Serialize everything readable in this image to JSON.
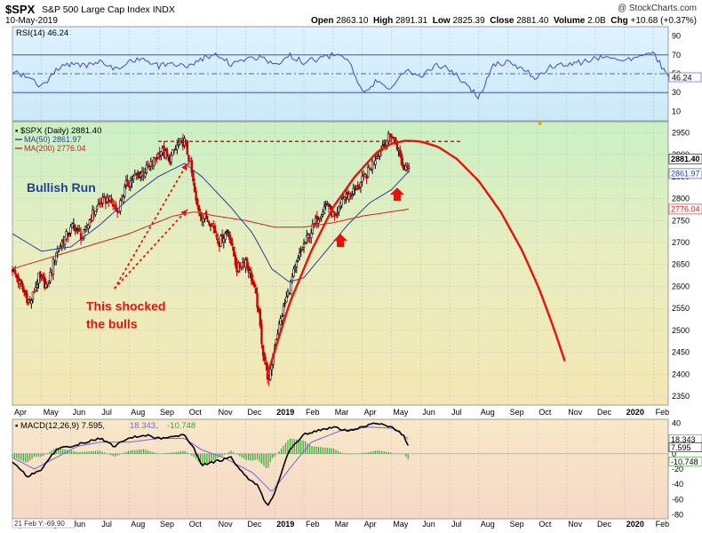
{
  "header": {
    "ticker": "$SPX",
    "name": "S&P 500 Large Cap Index",
    "exchange": "INDX",
    "date": "10-May-2019",
    "watermark": "@ StockCharts.com",
    "open_label": "Open",
    "open_value": "2863.10",
    "high_label": "High",
    "high_value": "2891.31",
    "low_label": "Low",
    "low_value": "2825.39",
    "close_label": "Close",
    "close_value": "2881.40",
    "volume_label": "Volume",
    "volume_value": "2.0B",
    "chg_label": "Chg",
    "chg_value": "+10.68 (+0.37%)"
  },
  "colors": {
    "price_up": "#000000",
    "price_down": "#cc0000",
    "ma50": "#2c3e9a",
    "ma200": "#cc2222",
    "annotation": "#e8120c",
    "rsi_line": "#3a4fc9",
    "macd_line": "#000000",
    "signal_line": "#6a6ad8",
    "hist": "#33aa33"
  },
  "chart_data": [
    {
      "type": "line",
      "panel": "RSI",
      "legend": "RSI(14) 46.24",
      "ylim": [
        0,
        100
      ],
      "y_ticks": [
        "90",
        "70",
        "50",
        "30",
        "10"
      ],
      "current_value_label": "46.24",
      "guide_lines": [
        70,
        50,
        30
      ],
      "x": [
        0,
        10,
        20,
        30,
        40,
        50,
        60,
        70,
        80,
        90,
        100,
        110,
        120,
        130,
        140,
        150,
        160,
        170,
        180,
        190,
        200,
        210,
        220,
        230,
        240,
        250,
        260,
        270,
        280,
        290,
        300,
        310,
        320,
        330,
        340,
        350,
        360,
        370,
        380,
        390,
        400,
        410,
        420,
        430,
        440,
        450,
        456
      ],
      "values": [
        52,
        48,
        35,
        55,
        60,
        58,
        63,
        55,
        62,
        66,
        58,
        62,
        56,
        66,
        70,
        60,
        66,
        68,
        58,
        70,
        62,
        66,
        70,
        67,
        30,
        42,
        35,
        55,
        45,
        60,
        55,
        40,
        25,
        60,
        62,
        55,
        45,
        58,
        60,
        62,
        66,
        68,
        64,
        70,
        72,
        46,
        46.24
      ]
    },
    {
      "type": "candlestick",
      "panel": "price",
      "legend": [
        {
          "name": "$SPX (Daily) 2881.40",
          "color": "#000000"
        },
        {
          "name": "MA(50) 2861.97",
          "color": "#2c3e9a"
        },
        {
          "name": "MA(200) 2776.04",
          "color": "#cc2222"
        }
      ],
      "ylim": [
        2330,
        2975
      ],
      "y_ticks": [
        2950,
        2900,
        2850,
        2800,
        2750,
        2700,
        2650,
        2600,
        2550,
        2500,
        2450,
        2400,
        2350
      ],
      "price_labels": {
        "close": "2881.40",
        "ma50": "2861.97",
        "ma200": "2776.04"
      },
      "x_labels": [
        "Apr",
        "May",
        "Jun",
        "Jul",
        "Aug",
        "Sep",
        "Oct",
        "Nov",
        "Dec",
        "2019",
        "Feb",
        "Mar",
        "Apr",
        "May",
        "Jun",
        "Jul",
        "Aug",
        "Sep",
        "Oct",
        "Nov",
        "Dec",
        "2020",
        "Feb"
      ],
      "x_label_pos": [
        0,
        20,
        40,
        60,
        80,
        100,
        120,
        140,
        160,
        180,
        200,
        220,
        240,
        260,
        280,
        300,
        320,
        340,
        360,
        380,
        400,
        420,
        440
      ],
      "price_keypoints": [
        [
          0,
          2640
        ],
        [
          6,
          2600
        ],
        [
          12,
          2560
        ],
        [
          18,
          2620
        ],
        [
          24,
          2600
        ],
        [
          30,
          2680
        ],
        [
          36,
          2710
        ],
        [
          42,
          2740
        ],
        [
          48,
          2710
        ],
        [
          54,
          2760
        ],
        [
          60,
          2790
        ],
        [
          66,
          2800
        ],
        [
          72,
          2770
        ],
        [
          78,
          2830
        ],
        [
          84,
          2850
        ],
        [
          90,
          2860
        ],
        [
          96,
          2880
        ],
        [
          102,
          2910
        ],
        [
          108,
          2890
        ],
        [
          114,
          2925
        ],
        [
          118,
          2930
        ],
        [
          122,
          2880
        ],
        [
          126,
          2790
        ],
        [
          130,
          2760
        ],
        [
          136,
          2750
        ],
        [
          142,
          2700
        ],
        [
          148,
          2730
        ],
        [
          154,
          2640
        ],
        [
          160,
          2660
        ],
        [
          164,
          2620
        ],
        [
          168,
          2560
        ],
        [
          172,
          2450
        ],
        [
          176,
          2380
        ],
        [
          180,
          2470
        ],
        [
          186,
          2550
        ],
        [
          192,
          2620
        ],
        [
          198,
          2680
        ],
        [
          204,
          2720
        ],
        [
          210,
          2760
        ],
        [
          216,
          2790
        ],
        [
          222,
          2750
        ],
        [
          226,
          2800
        ],
        [
          232,
          2810
        ],
        [
          238,
          2830
        ],
        [
          244,
          2860
        ],
        [
          250,
          2900
        ],
        [
          256,
          2930
        ],
        [
          260,
          2945
        ],
        [
          264,
          2920
        ],
        [
          268,
          2870
        ],
        [
          272,
          2881.4
        ]
      ],
      "ma50_keypoints": [
        [
          0,
          2720
        ],
        [
          20,
          2680
        ],
        [
          40,
          2690
        ],
        [
          60,
          2740
        ],
        [
          80,
          2800
        ],
        [
          100,
          2850
        ],
        [
          118,
          2880
        ],
        [
          130,
          2850
        ],
        [
          150,
          2780
        ],
        [
          165,
          2720
        ],
        [
          178,
          2640
        ],
        [
          190,
          2610
        ],
        [
          200,
          2620
        ],
        [
          215,
          2680
        ],
        [
          230,
          2740
        ],
        [
          245,
          2790
        ],
        [
          260,
          2820
        ],
        [
          272,
          2861.97
        ]
      ],
      "ma200_keypoints": [
        [
          0,
          2640
        ],
        [
          40,
          2680
        ],
        [
          80,
          2720
        ],
        [
          110,
          2760
        ],
        [
          125,
          2770
        ],
        [
          140,
          2760
        ],
        [
          160,
          2750
        ],
        [
          180,
          2735
        ],
        [
          200,
          2735
        ],
        [
          220,
          2745
        ],
        [
          240,
          2760
        ],
        [
          260,
          2770
        ],
        [
          272,
          2776.04
        ]
      ],
      "dashed_resistance": {
        "from_x": 100,
        "to_x": 308,
        "y": 2930
      },
      "arc_keypoints": [
        [
          175,
          2400
        ],
        [
          190,
          2560
        ],
        [
          205,
          2680
        ],
        [
          220,
          2780
        ],
        [
          235,
          2850
        ],
        [
          250,
          2905
        ],
        [
          260,
          2925
        ],
        [
          270,
          2932
        ],
        [
          280,
          2930
        ],
        [
          292,
          2918
        ],
        [
          305,
          2890
        ],
        [
          320,
          2840
        ],
        [
          335,
          2770
        ],
        [
          350,
          2680
        ],
        [
          362,
          2590
        ],
        [
          372,
          2500
        ],
        [
          380,
          2420
        ]
      ],
      "annotations": [
        {
          "text": "Bullish Run"
        },
        {
          "text": "This shocked"
        },
        {
          "text": "the bulls"
        }
      ]
    },
    {
      "type": "line",
      "panel": "MACD",
      "legend": {
        "name": "MACD(12,26,9)",
        "macd": "7.595",
        "signal": "18.343",
        "hist": "-10.748"
      },
      "ylim": [
        -85,
        45
      ],
      "y_ticks": [
        40,
        20,
        0,
        -20,
        -40,
        -60,
        -80
      ],
      "value_labels": [
        "18.343",
        "7.595",
        "-10.748"
      ],
      "footnote": "21 Feb Y:-69.90",
      "macd_keypoints": [
        [
          0,
          -10
        ],
        [
          10,
          -30
        ],
        [
          20,
          -20
        ],
        [
          30,
          5
        ],
        [
          40,
          10
        ],
        [
          50,
          15
        ],
        [
          60,
          20
        ],
        [
          70,
          10
        ],
        [
          80,
          20
        ],
        [
          90,
          25
        ],
        [
          100,
          20
        ],
        [
          110,
          22
        ],
        [
          118,
          25
        ],
        [
          125,
          5
        ],
        [
          130,
          -15
        ],
        [
          140,
          -10
        ],
        [
          150,
          -5
        ],
        [
          160,
          -30
        ],
        [
          168,
          -40
        ],
        [
          175,
          -70
        ],
        [
          180,
          -50
        ],
        [
          190,
          5
        ],
        [
          200,
          25
        ],
        [
          210,
          30
        ],
        [
          220,
          35
        ],
        [
          230,
          30
        ],
        [
          240,
          35
        ],
        [
          250,
          40
        ],
        [
          260,
          35
        ],
        [
          268,
          25
        ],
        [
          272,
          7.595
        ]
      ],
      "signal_keypoints": [
        [
          0,
          -5
        ],
        [
          15,
          -20
        ],
        [
          30,
          -5
        ],
        [
          45,
          10
        ],
        [
          60,
          15
        ],
        [
          80,
          15
        ],
        [
          100,
          20
        ],
        [
          118,
          20
        ],
        [
          130,
          5
        ],
        [
          145,
          -5
        ],
        [
          165,
          -25
        ],
        [
          178,
          -50
        ],
        [
          190,
          -20
        ],
        [
          205,
          15
        ],
        [
          225,
          30
        ],
        [
          245,
          35
        ],
        [
          262,
          33
        ],
        [
          272,
          18.343
        ]
      ]
    }
  ]
}
